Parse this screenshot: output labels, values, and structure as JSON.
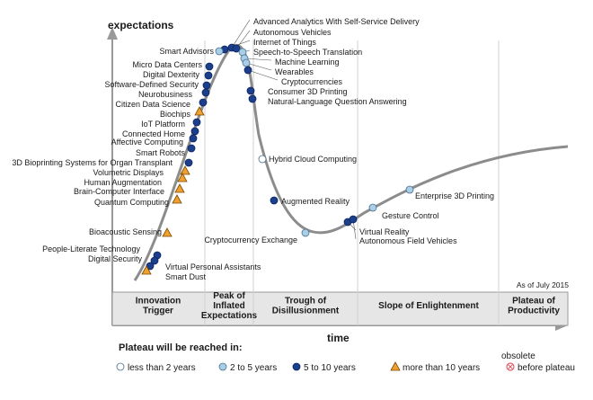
{
  "chart_data": {
    "type": "scatter",
    "title": "",
    "ylabel": "expectations",
    "xlabel": "time",
    "date_note": "As of July 2015",
    "phases": [
      {
        "lines": [
          "Innovation",
          "Trigger"
        ]
      },
      {
        "lines": [
          "Peak of",
          "Inflated",
          "Expectations"
        ]
      },
      {
        "lines": [
          "Trough of",
          "Disillusionment"
        ]
      },
      {
        "lines": [
          "Slope of Enlightenment"
        ]
      },
      {
        "lines": [
          "Plateau of",
          "Productivity"
        ]
      }
    ],
    "legend": {
      "title": "Plateau will be reached in:",
      "items": [
        {
          "key": "lt2",
          "label": "less than 2 years",
          "color": "#ffffff"
        },
        {
          "key": "2to5",
          "label": "2 to 5 years",
          "color": "#a9cfe8"
        },
        {
          "key": "5to10",
          "label": "5 to 10 years",
          "color": "#1b3f8b"
        },
        {
          "key": "gt10",
          "label": "more than 10 years",
          "color": "#f0a030"
        },
        {
          "key": "obs",
          "label": "obsolete\nbefore plateau",
          "color": "#e06070"
        }
      ]
    },
    "technologies": [
      {
        "name": "Advanced Analytics With Self-Service Delivery",
        "category": "5to10"
      },
      {
        "name": "Autonomous Vehicles",
        "category": "5to10"
      },
      {
        "name": "Internet of Things",
        "category": "5to10"
      },
      {
        "name": "Speech-to-Speech Translation",
        "category": "2to5"
      },
      {
        "name": "Machine Learning",
        "category": "2to5"
      },
      {
        "name": "Wearables",
        "category": "2to5"
      },
      {
        "name": "Cryptocurrencies",
        "category": "5to10"
      },
      {
        "name": "Consumer 3D Printing",
        "category": "5to10"
      },
      {
        "name": "Natural-Language Question Answering",
        "category": "5to10"
      },
      {
        "name": "Smart Advisors",
        "category": "2to5"
      },
      {
        "name": "Micro Data Centers",
        "category": "5to10"
      },
      {
        "name": "Digital Dexterity",
        "category": "5to10"
      },
      {
        "name": "Software-Defined Security",
        "category": "5to10"
      },
      {
        "name": "Neurobusiness",
        "category": "5to10"
      },
      {
        "name": "Citizen Data Science",
        "category": "5to10"
      },
      {
        "name": "Biochips",
        "category": "gt10"
      },
      {
        "name": "IoT Platform",
        "category": "5to10"
      },
      {
        "name": "Connected Home",
        "category": "5to10"
      },
      {
        "name": "Affective Computing",
        "category": "5to10"
      },
      {
        "name": "Smart Robots",
        "category": "5to10"
      },
      {
        "name": "3D Bioprinting Systems for Organ Transplant",
        "category": "5to10"
      },
      {
        "name": "Volumetric Displays",
        "category": "gt10"
      },
      {
        "name": "Human Augmentation",
        "category": "gt10"
      },
      {
        "name": "Brain-Computer Interface",
        "category": "gt10"
      },
      {
        "name": "Quantum Computing",
        "category": "gt10"
      },
      {
        "name": "Bioacoustic Sensing",
        "category": "gt10"
      },
      {
        "name": "People-Literate Technology",
        "category": "5to10"
      },
      {
        "name": "Digital Security",
        "category": "5to10"
      },
      {
        "name": "Virtual Personal Assistants",
        "category": "5to10"
      },
      {
        "name": "Smart Dust",
        "category": "gt10"
      },
      {
        "name": "Hybrid Cloud Computing",
        "category": "lt2"
      },
      {
        "name": "Augmented Reality",
        "category": "5to10"
      },
      {
        "name": "Cryptocurrency Exchange",
        "category": "2to5"
      },
      {
        "name": "Virtual Reality",
        "category": "5to10"
      },
      {
        "name": "Autonomous Field Vehicles",
        "category": "5to10"
      },
      {
        "name": "Gesture Control",
        "category": "2to5"
      },
      {
        "name": "Enterprise 3D Printing",
        "category": "2to5"
      }
    ]
  }
}
